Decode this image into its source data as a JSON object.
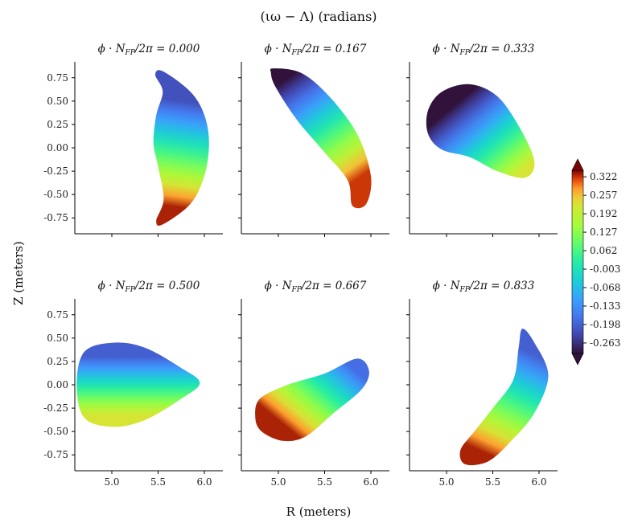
{
  "chart_data": {
    "type": "heatmap",
    "title": "(ιω − Λ) (radians)",
    "xlabel": "R (meters)",
    "ylabel": "Z (meters)",
    "xlim": [
      4.6,
      6.2
    ],
    "ylim": [
      -0.92,
      0.92
    ],
    "xticks": [
      5.0,
      5.5,
      6.0
    ],
    "xtick_labels": [
      "5.0",
      "5.5",
      "6.0"
    ],
    "yticks": [
      0.75,
      0.5,
      0.25,
      0.0,
      -0.25,
      -0.5,
      -0.75
    ],
    "ytick_labels": [
      "0.75",
      "0.50",
      "0.25",
      "0.00",
      "-0.25",
      "-0.50",
      "-0.75"
    ],
    "colorbar": {
      "colormap": "turbo",
      "min": -0.3,
      "max": 0.345,
      "tick_values": [
        0.322,
        0.257,
        0.192,
        0.127,
        0.062,
        -0.003,
        -0.068,
        -0.133,
        -0.198,
        -0.263
      ],
      "tick_labels": [
        "0.322",
        "0.257",
        "0.192",
        "0.127",
        "0.062",
        "-0.003",
        "-0.068",
        "-0.133",
        "-0.198",
        "-0.263"
      ]
    },
    "panels": [
      {
        "title": "ϕ · N_FP/2π = 0.000",
        "title_prefix": "ϕ · ",
        "title_n": "N",
        "title_sub": "FP",
        "title_suffix": "/2π = 0.000",
        "boundary": [
          [
            5.55,
            0.82
          ],
          [
            5.85,
            0.6
          ],
          [
            6.0,
            0.35
          ],
          [
            6.05,
            0.05
          ],
          [
            6.0,
            -0.3
          ],
          [
            5.85,
            -0.6
          ],
          [
            5.55,
            -0.82
          ],
          [
            5.48,
            -0.78
          ],
          [
            5.56,
            -0.55
          ],
          [
            5.5,
            -0.2
          ],
          [
            5.45,
            0.05
          ],
          [
            5.48,
            0.35
          ],
          [
            5.55,
            0.6
          ],
          [
            5.47,
            0.78
          ]
        ],
        "field_peaks": [
          {
            "R": 5.78,
            "Z": 0.5,
            "value": -0.22
          },
          {
            "R": 5.62,
            "Z": -0.62,
            "value": 0.33
          }
        ]
      },
      {
        "title": "ϕ · N_FP/2π = 0.167",
        "title_prefix": "ϕ · ",
        "title_n": "N",
        "title_sub": "FP",
        "title_suffix": "/2π = 0.167",
        "boundary": [
          [
            4.95,
            0.85
          ],
          [
            5.25,
            0.8
          ],
          [
            5.55,
            0.55
          ],
          [
            5.85,
            0.15
          ],
          [
            6.0,
            -0.3
          ],
          [
            5.95,
            -0.6
          ],
          [
            5.8,
            -0.62
          ],
          [
            5.75,
            -0.35
          ],
          [
            5.5,
            -0.05
          ],
          [
            5.2,
            0.3
          ],
          [
            4.97,
            0.65
          ],
          [
            4.92,
            0.8
          ]
        ],
        "field_peaks": [
          {
            "R": 5.15,
            "Z": 0.78,
            "value": -0.3
          },
          {
            "R": 5.9,
            "Z": -0.3,
            "value": 0.32
          }
        ]
      },
      {
        "title": "ϕ · N_FP/2π = 0.333",
        "title_prefix": "ϕ · ",
        "title_n": "N",
        "title_sub": "FP",
        "title_suffix": "/2π = 0.333",
        "boundary": [
          [
            4.95,
            0.6
          ],
          [
            5.25,
            0.68
          ],
          [
            5.55,
            0.55
          ],
          [
            5.8,
            0.2
          ],
          [
            5.95,
            -0.15
          ],
          [
            5.85,
            -0.32
          ],
          [
            5.55,
            -0.25
          ],
          [
            5.25,
            -0.1
          ],
          [
            4.95,
            -0.02
          ],
          [
            4.8,
            0.15
          ],
          [
            4.8,
            0.4
          ]
        ],
        "field_peaks": [
          {
            "R": 5.2,
            "Z": 0.55,
            "value": -0.3
          },
          {
            "R": 5.85,
            "Z": -0.22,
            "value": 0.22
          }
        ]
      },
      {
        "title": "ϕ · N_FP/2π = 0.500",
        "title_prefix": "ϕ · ",
        "title_n": "N",
        "title_sub": "FP",
        "title_suffix": "/2π = 0.500",
        "boundary": [
          [
            4.7,
            0.35
          ],
          [
            5.0,
            0.45
          ],
          [
            5.35,
            0.4
          ],
          [
            5.75,
            0.18
          ],
          [
            5.95,
            0.02
          ],
          [
            5.75,
            -0.15
          ],
          [
            5.35,
            -0.38
          ],
          [
            5.0,
            -0.45
          ],
          [
            4.7,
            -0.35
          ],
          [
            4.62,
            0.0
          ]
        ],
        "field_peaks": [
          {
            "R": 5.25,
            "Z": 0.3,
            "value": -0.2
          },
          {
            "R": 5.25,
            "Z": -0.32,
            "value": 0.22
          }
        ]
      },
      {
        "title": "ϕ · N_FP/2π = 0.667",
        "title_prefix": "ϕ · ",
        "title_n": "N",
        "title_sub": "FP",
        "title_suffix": "/2π = 0.667",
        "boundary": [
          [
            4.8,
            -0.15
          ],
          [
            5.1,
            0.0
          ],
          [
            5.5,
            0.12
          ],
          [
            5.85,
            0.28
          ],
          [
            5.98,
            0.15
          ],
          [
            5.9,
            -0.05
          ],
          [
            5.6,
            -0.3
          ],
          [
            5.3,
            -0.55
          ],
          [
            5.05,
            -0.6
          ],
          [
            4.82,
            -0.5
          ],
          [
            4.75,
            -0.35
          ]
        ],
        "field_peaks": [
          {
            "R": 5.75,
            "Z": 0.22,
            "value": -0.18
          },
          {
            "R": 5.15,
            "Z": -0.5,
            "value": 0.33
          }
        ]
      },
      {
        "title": "ϕ · N_FP/2π = 0.833",
        "title_prefix": "ϕ · ",
        "title_n": "N",
        "title_sub": "FP",
        "title_suffix": "/2π = 0.833",
        "boundary": [
          [
            5.82,
            0.6
          ],
          [
            5.95,
            0.45
          ],
          [
            6.1,
            0.1
          ],
          [
            5.95,
            -0.3
          ],
          [
            5.7,
            -0.6
          ],
          [
            5.45,
            -0.82
          ],
          [
            5.2,
            -0.85
          ],
          [
            5.15,
            -0.7
          ],
          [
            5.3,
            -0.5
          ],
          [
            5.5,
            -0.25
          ],
          [
            5.72,
            0.05
          ],
          [
            5.78,
            0.4
          ]
        ],
        "field_peaks": [
          {
            "R": 5.9,
            "Z": 0.35,
            "value": -0.2
          },
          {
            "R": 5.4,
            "Z": -0.72,
            "value": 0.33
          }
        ]
      }
    ]
  }
}
